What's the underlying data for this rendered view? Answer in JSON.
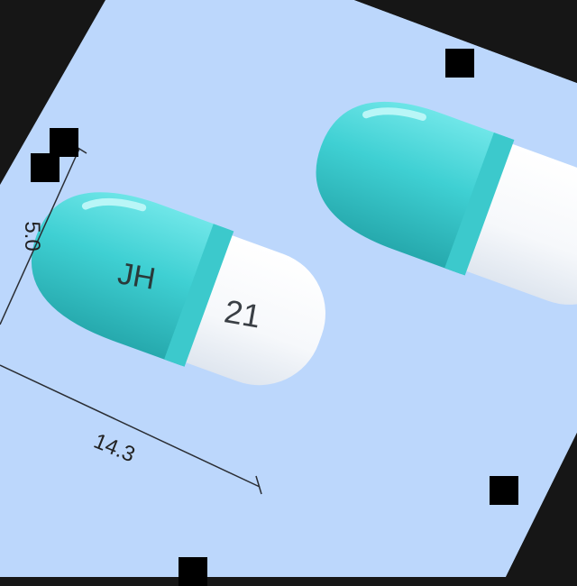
{
  "image": {
    "background_color": "#161616",
    "card_color": "#bcd7fc",
    "capsule_colors": {
      "cap": "#43d4d7",
      "cap_dark": "#2fb5b9",
      "body": "#fdfdfe"
    }
  },
  "capsule_left": {
    "imprint_cap": "JH",
    "imprint_body": "21"
  },
  "dimensions": {
    "height_label": "5.0",
    "length_label": "14.3"
  }
}
